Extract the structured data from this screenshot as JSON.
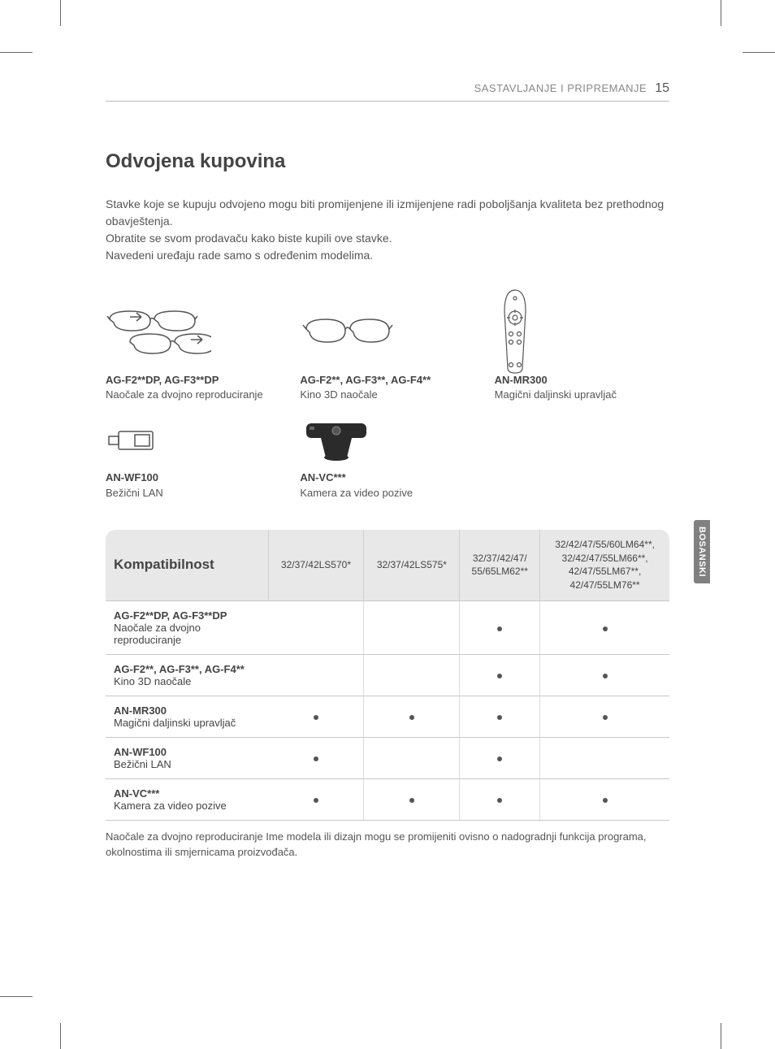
{
  "header": {
    "section": "SASTAVLJANJE I PRIPREMANJE",
    "page": "15"
  },
  "title": "Odvojena kupovina",
  "intro": [
    "Stavke koje se kupuju odvojeno mogu biti promijenjene ili izmijenjene radi poboljšanja kvaliteta bez prethodnog obavještenja.",
    "Obratite se svom prodavaču kako biste kupili ove stavke.",
    "Navedeni uređaju rade samo s određenim modelima."
  ],
  "products": [
    {
      "model": "AG-F2**DP, AG-F3**DP",
      "desc": "Naočale za dvojno reproduciranje"
    },
    {
      "model": "AG-F2**, AG-F3**, AG-F4**",
      "desc": "Kino 3D naočale"
    },
    {
      "model": "AN-MR300",
      "desc": "Magični daljinski upravljač"
    },
    {
      "model": "AN-WF100",
      "desc": "Bežični LAN"
    },
    {
      "model": "AN-VC***",
      "desc": "Kamera za video pozive"
    }
  ],
  "sidetab": "BOSANSKI",
  "table": {
    "header_label": "Kompatibilnost",
    "columns": [
      "32/37/42LS570*",
      "32/37/42LS575*",
      "32/37/42/47/\n55/65LM62**",
      "32/42/47/55/60LM64**,\n32/42/47/55LM66**,\n42/47/55LM67**,\n42/47/55LM76**"
    ],
    "rows": [
      {
        "model": "AG-F2**DP, AG-F3**DP",
        "desc": "Naočale za dvojno reproduciranje",
        "cells": [
          false,
          false,
          true,
          true
        ]
      },
      {
        "model": "AG-F2**, AG-F3**, AG-F4**",
        "desc": "Kino 3D naočale",
        "cells": [
          false,
          false,
          true,
          true
        ]
      },
      {
        "model": "AN-MR300",
        "desc": "Magični daljinski upravljač",
        "cells": [
          true,
          true,
          true,
          true
        ]
      },
      {
        "model": "AN-WF100",
        "desc": "Bežični LAN",
        "cells": [
          true,
          false,
          true,
          false
        ]
      },
      {
        "model": "AN-VC***",
        "desc": "Kamera za video pozive",
        "cells": [
          true,
          true,
          true,
          true
        ]
      }
    ]
  },
  "footnote": "Naočale za dvojno reproduciranje Ime modela ili dizajn mogu se promijeniti ovisno o nadogradnji funkcija programa, okolnostima ili smjernicama proizvođača."
}
